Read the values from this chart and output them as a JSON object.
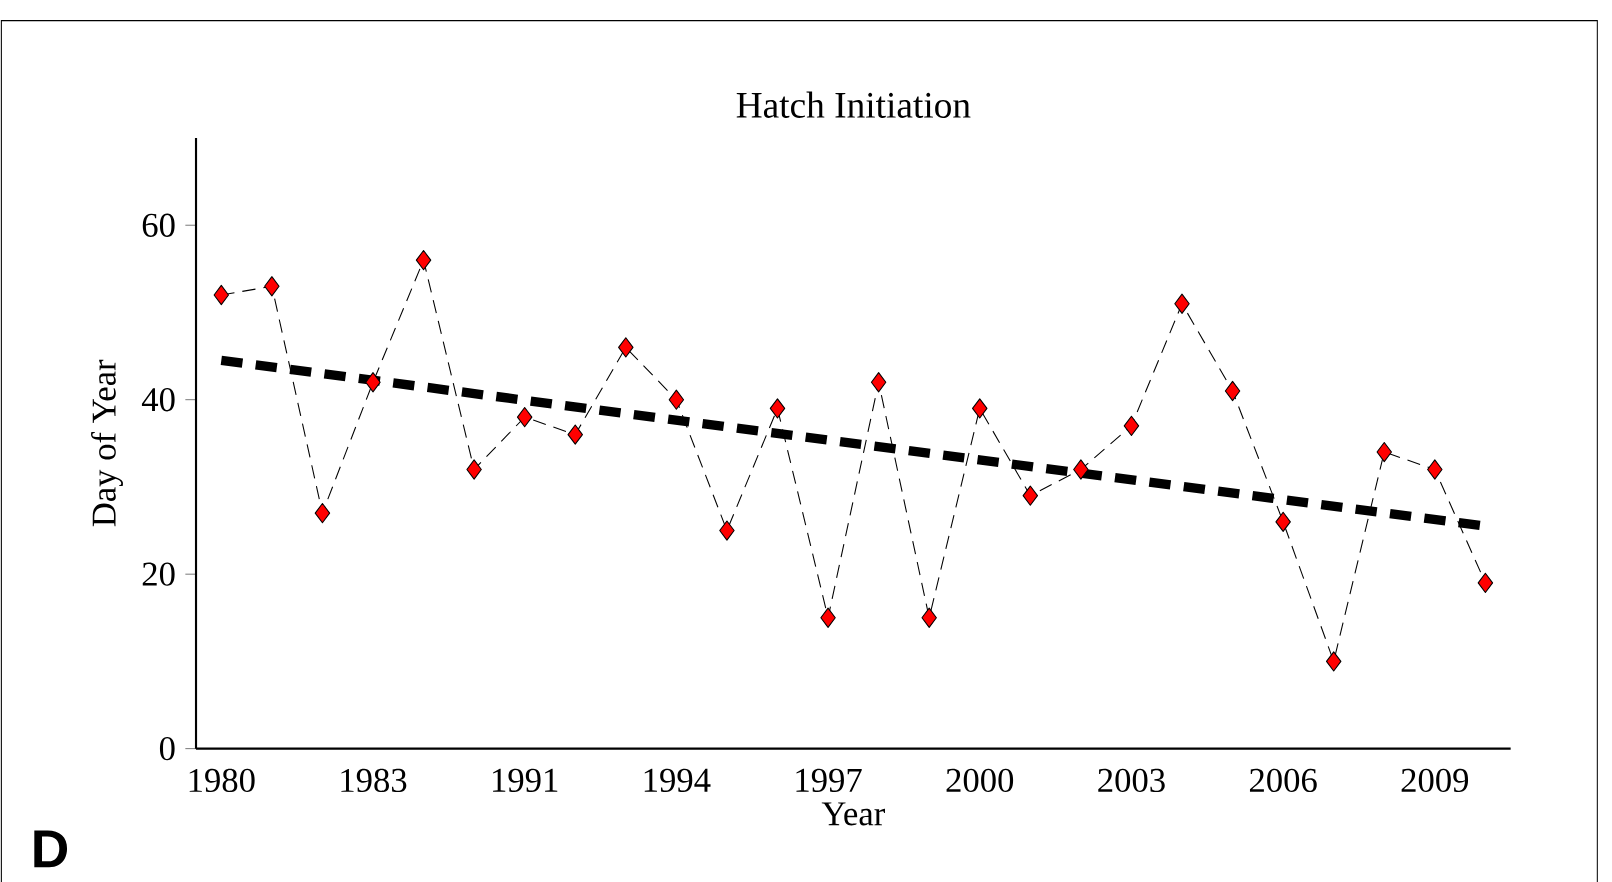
{
  "chart_data": {
    "type": "line",
    "title": "Hatch Initiation",
    "xlabel": "Year",
    "ylabel": "Day of  Year",
    "categories": [
      "1980",
      null,
      null,
      "1983",
      null,
      null,
      "1991",
      null,
      null,
      "1994",
      null,
      null,
      "1997",
      null,
      null,
      "2000",
      null,
      null,
      "2003",
      null,
      null,
      "2006",
      null,
      null,
      "2009",
      null
    ],
    "series": [
      {
        "color": "#ff0000",
        "marker": "diamond",
        "line_style": "dashed",
        "values": [
          52,
          53,
          27,
          42,
          56,
          32,
          38,
          36,
          46,
          40,
          25,
          39,
          15,
          42,
          15,
          39,
          29,
          32,
          37,
          51,
          41,
          26,
          10,
          34,
          32,
          19
        ]
      },
      {
        "color": "#000000",
        "marker": "none",
        "line_style": "dashed",
        "values": [
          44.5,
          null,
          null,
          null,
          null,
          null,
          null,
          null,
          null,
          null,
          null,
          null,
          null,
          null,
          null,
          null,
          null,
          null,
          null,
          null,
          null,
          null,
          null,
          null,
          null,
          25.5
        ]
      }
    ],
    "ylim": [
      0,
      70
    ],
    "yticks": [
      0,
      20,
      40,
      60
    ],
    "grid": false,
    "annotations": [
      "D"
    ]
  }
}
